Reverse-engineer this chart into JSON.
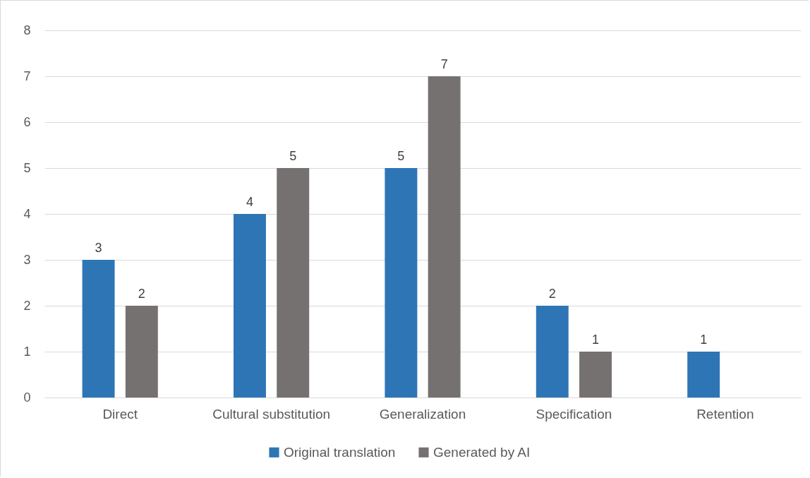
{
  "chart_data": {
    "type": "bar",
    "categories": [
      "Direct",
      "Cultural substitution",
      "Generalization",
      "Specification",
      "Retention"
    ],
    "series": [
      {
        "name": "Original translation",
        "color": "#2e75b6",
        "values": [
          3,
          4,
          5,
          2,
          1
        ]
      },
      {
        "name": "Generated by AI",
        "color": "#767171",
        "values": [
          2,
          5,
          7,
          1,
          null
        ]
      }
    ],
    "ylim": [
      0,
      8
    ],
    "yticks": [
      0,
      1,
      2,
      3,
      4,
      5,
      6,
      7,
      8
    ],
    "grid": "y",
    "legend": "bottom",
    "data_labels": true
  }
}
